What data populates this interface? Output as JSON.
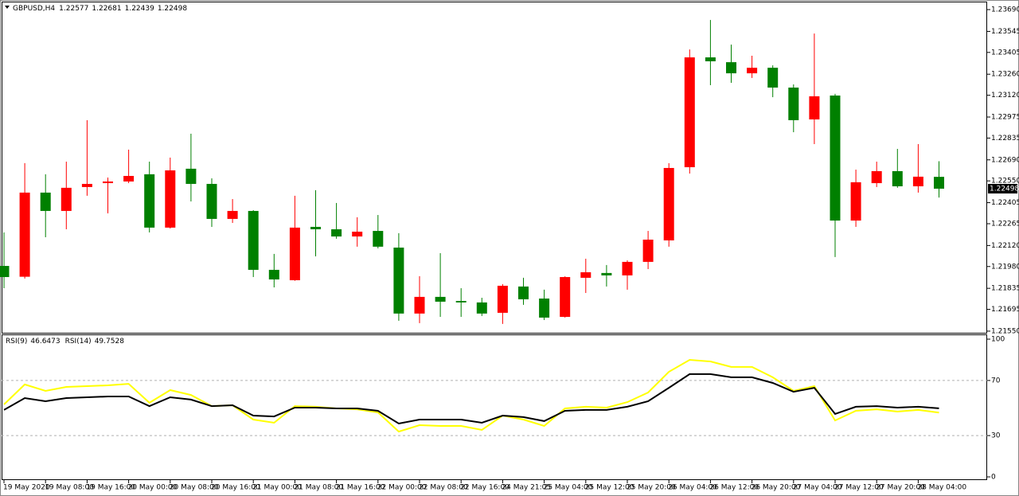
{
  "chart_data": [
    {
      "type": "candlestick",
      "symbol": "GBPUSD,H4",
      "categories": [
        "19 May 2020",
        null,
        "19 May 08:00",
        null,
        "19 May 16:00",
        null,
        "20 May 00:00",
        null,
        "20 May 08:00",
        null,
        "20 May 16:00",
        null,
        "21 May 00:00",
        null,
        "21 May 08:00",
        null,
        "21 May 16:00",
        null,
        "22 May 00:00",
        null,
        "22 May 08:00",
        null,
        "22 May 16:00",
        null,
        "24 May 21:05",
        null,
        "25 May 04:00",
        null,
        "25 May 12:00",
        null,
        "25 May 20:00",
        null,
        "26 May 04:00",
        null,
        "26 May 12:00",
        null,
        "26 May 20:00",
        null,
        "27 May 04:00",
        null,
        "27 May 12:00",
        null,
        "27 May 20:00",
        null,
        "28 May 04:00",
        null
      ],
      "open": [
        1.21984,
        1.21912,
        1.22472,
        1.2235,
        1.22509,
        1.22535,
        1.22546,
        1.22594,
        1.22239,
        1.22631,
        1.2253,
        1.22297,
        1.2235,
        1.21958,
        1.21889,
        1.22244,
        1.22228,
        1.2218,
        1.22217,
        1.22106,
        1.21667,
        1.21778,
        1.21751,
        1.21741,
        1.21672,
        1.21847,
        1.21767,
        1.21645,
        1.21905,
        1.21937,
        1.21921,
        1.22011,
        1.22154,
        1.22641,
        1.23372,
        1.2334,
        1.23266,
        1.23303,
        1.23171,
        1.22959,
        1.23118,
        1.22286,
        1.22535,
        1.22615,
        1.22514,
        1.22577
      ],
      "high": [
        1.22207,
        1.22668,
        1.22594,
        1.22678,
        1.22954,
        1.22572,
        1.22758,
        1.22678,
        1.22705,
        1.22864,
        1.22567,
        1.22429,
        1.22355,
        1.22064,
        1.22451,
        1.22488,
        1.22403,
        1.22308,
        1.22323,
        1.22202,
        1.21916,
        1.22069,
        1.21836,
        1.21772,
        1.21863,
        1.21905,
        1.21826,
        1.21915,
        1.22032,
        1.2199,
        1.22021,
        1.22217,
        1.22668,
        1.23425,
        1.23621,
        1.23457,
        1.23383,
        1.23319,
        1.23192,
        1.23531,
        1.23129,
        1.22625,
        1.22678,
        1.22763,
        1.22795,
        1.22681
      ],
      "low": [
        1.21836,
        1.219,
        1.22175,
        1.22228,
        1.22451,
        1.22334,
        1.22535,
        1.22207,
        1.22233,
        1.22413,
        1.22244,
        1.2227,
        1.2191,
        1.21841,
        1.21885,
        1.22048,
        1.22165,
        1.22112,
        1.22101,
        1.21619,
        1.21603,
        1.21645,
        1.21645,
        1.21651,
        1.21598,
        1.21725,
        1.21624,
        1.2164,
        1.21804,
        1.21847,
        1.21826,
        1.21963,
        1.22112,
        1.22599,
        1.23187,
        1.23203,
        1.23235,
        1.23107,
        1.22874,
        1.22795,
        1.22043,
        1.22244,
        1.22509,
        1.22504,
        1.22472,
        1.22439
      ],
      "close": [
        1.2191,
        1.22472,
        1.2235,
        1.22504,
        1.2253,
        1.22546,
        1.22583,
        1.22239,
        1.2262,
        1.2253,
        1.22297,
        1.2235,
        1.21958,
        1.21894,
        1.22239,
        1.22228,
        1.2218,
        1.22212,
        1.22112,
        1.21667,
        1.21778,
        1.21746,
        1.21741,
        1.21667,
        1.21852,
        1.21762,
        1.2164,
        1.2191,
        1.21942,
        1.21921,
        1.22011,
        1.22159,
        1.22636,
        1.23372,
        1.23346,
        1.23266,
        1.23303,
        1.23171,
        1.22954,
        1.23113,
        1.22286,
        1.22541,
        1.22615,
        1.22514,
        1.22578,
        1.22498
      ],
      "up_color": "#ff0000",
      "down_color": "#008000",
      "ylim": [
        1.21539,
        1.23738
      ],
      "yticks": [
        {
          "value": 1.2369,
          "label": "1.23690"
        },
        1.23545,
        1.23405,
        {
          "value": 1.2326,
          "label": "1.23260"
        },
        {
          "value": 1.2312,
          "label": "1.23120"
        },
        1.22975,
        1.22835,
        {
          "value": 1.2269,
          "label": "1.22690"
        },
        {
          "value": 1.2255,
          "label": "1.22550"
        },
        1.22405,
        1.22265,
        {
          "value": 1.2212,
          "label": "1.22120"
        },
        {
          "value": 1.2198,
          "label": "1.21980"
        },
        1.21835,
        1.21695,
        {
          "value": 1.2155,
          "label": "1.21550"
        }
      ]
    },
    {
      "type": "line",
      "series": [
        {
          "name": "RSI(9)",
          "color": "#ffff00",
          "values": [
            52.6,
            67.1,
            62.4,
            65.3,
            65.9,
            66.5,
            67.6,
            53.8,
            63.0,
            59.5,
            51.4,
            52.0,
            41.6,
            39.3,
            51.4,
            50.9,
            49.7,
            49.1,
            46.8,
            32.9,
            37.6,
            37.0,
            37.0,
            34.1,
            44.5,
            41.6,
            37.0,
            49.7,
            50.9,
            50.3,
            54.3,
            61.3,
            76.3,
            85.0,
            83.8,
            79.8,
            79.8,
            72.3,
            62.4,
            65.9,
            41.0,
            48.0,
            49.1,
            47.4,
            48.6,
            46.6473
          ]
        },
        {
          "name": "RSI(14)",
          "color": "#000000",
          "values": [
            48.6,
            57.2,
            54.9,
            57.2,
            57.8,
            58.4,
            58.4,
            51.4,
            57.8,
            56.1,
            51.4,
            52.0,
            44.5,
            43.9,
            50.3,
            50.3,
            49.7,
            49.7,
            48.0,
            38.7,
            41.6,
            41.6,
            41.6,
            39.3,
            44.5,
            43.4,
            40.5,
            48.0,
            48.6,
            48.6,
            50.9,
            54.9,
            64.7,
            74.6,
            74.6,
            72.3,
            72.3,
            68.2,
            61.8,
            64.7,
            45.7,
            50.9,
            51.4,
            50.3,
            50.9,
            49.7528
          ]
        }
      ],
      "ylim": [
        0,
        100
      ],
      "yticks": [
        0,
        30,
        70,
        100
      ]
    }
  ]
}
